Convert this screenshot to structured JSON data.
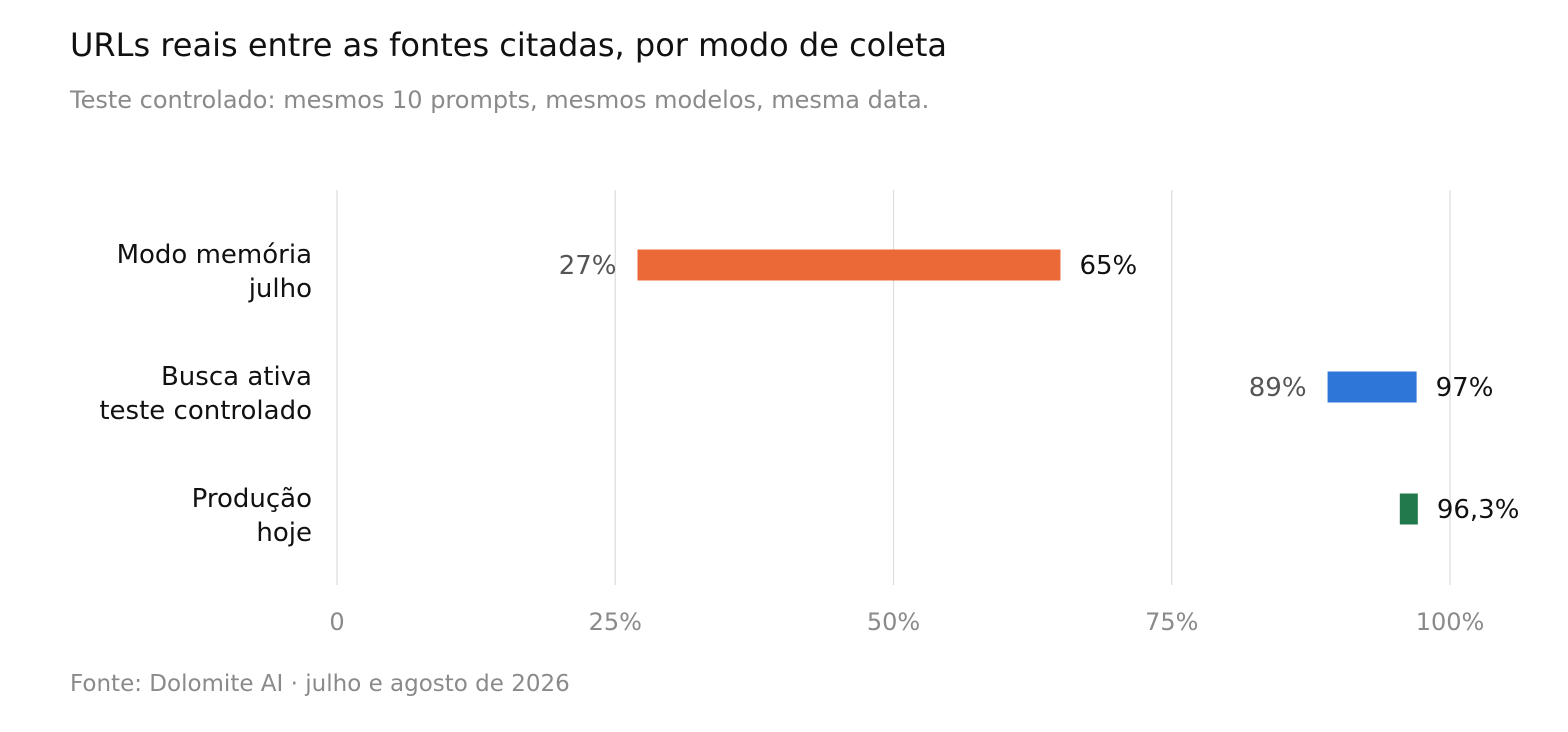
{
  "title": "URLs reais entre as fontes citadas, por modo de coleta",
  "subtitle": "Teste controlado: mesmos 10 prompts, mesmos modelos, mesma data.",
  "source": "Fonte: Dolomite AI · julho e agosto de 2026",
  "chart_data": {
    "type": "bar",
    "orientation": "horizontal-range",
    "title": "URLs reais entre as fontes citadas, por modo de coleta",
    "subtitle": "Teste controlado: mesmos 10 prompts, mesmos modelos, mesma data.",
    "xlim": [
      0,
      100
    ],
    "x_ticks": [
      {
        "value": 0,
        "label": "0"
      },
      {
        "value": 25,
        "label": "25%"
      },
      {
        "value": 50,
        "label": "50%"
      },
      {
        "value": 75,
        "label": "75%"
      },
      {
        "value": 100,
        "label": "100%"
      }
    ],
    "grid": true,
    "legend": "none",
    "rows": [
      {
        "label_lines": [
          "Modo memória",
          "julho"
        ],
        "low": 27,
        "high": 65,
        "low_label": "27%",
        "high_label": "65%",
        "color": "#EB6837"
      },
      {
        "label_lines": [
          "Busca ativa",
          "teste controlado"
        ],
        "low": 89,
        "high": 97,
        "low_label": "89%",
        "high_label": "97%",
        "color": "#2E77D8"
      },
      {
        "label_lines": [
          "Produção",
          "hoje"
        ],
        "low": 96.3,
        "high": 96.3,
        "low_label": "",
        "high_label": "96,3%",
        "color": "#217A4C"
      }
    ]
  }
}
